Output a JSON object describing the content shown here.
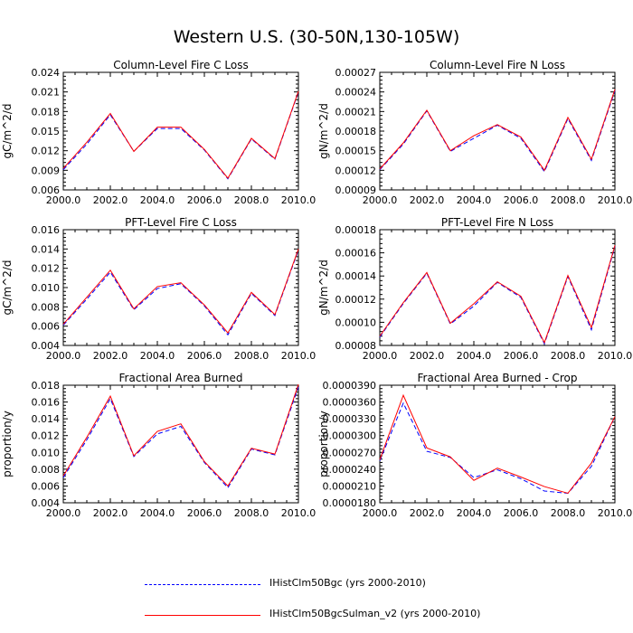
{
  "figure": {
    "title": "Western U.S. (30-50N,130-105W)"
  },
  "legend": {
    "items": [
      {
        "label": "IHistClm50Bgc (yrs 2000-2010)",
        "color": "#0000ff",
        "style": "dashed"
      },
      {
        "label": "IHistClm50BgcSulman_v2 (yrs 2000-2010)",
        "color": "#ff0000",
        "style": "solid"
      }
    ]
  },
  "chart_data": [
    {
      "type": "line",
      "title": "Column-Level Fire C Loss",
      "ylabel": "gC/m^2/d",
      "xlim": [
        2000,
        2010
      ],
      "ylim": [
        0.006,
        0.024
      ],
      "xticks": [
        "2000.0",
        "2002.0",
        "2004.0",
        "2006.0",
        "2008.0",
        "2010.0"
      ],
      "yticks": [
        "0.006",
        "0.009",
        "0.012",
        "0.015",
        "0.018",
        "0.021",
        "0.024"
      ],
      "x": [
        2000,
        2001,
        2002,
        2003,
        2004,
        2005,
        2006,
        2007,
        2008,
        2009,
        2010
      ],
      "series": [
        {
          "name": "IHistClm50Bgc (yrs 2000-2010)",
          "color": "#0000ff",
          "dash": true,
          "values": [
            0.0091,
            0.013,
            0.0175,
            0.0119,
            0.0154,
            0.0154,
            0.0121,
            0.0077,
            0.0138,
            0.0107,
            0.021
          ]
        },
        {
          "name": "IHistClm50BgcSulman_v2 (yrs 2000-2010)",
          "color": "#ff0000",
          "dash": false,
          "values": [
            0.0093,
            0.0133,
            0.0177,
            0.0119,
            0.0156,
            0.0156,
            0.0122,
            0.0078,
            0.0139,
            0.0108,
            0.0211
          ]
        }
      ]
    },
    {
      "type": "line",
      "title": "Column-Level Fire N Loss",
      "ylabel": "gN/m^2/d",
      "xlim": [
        2000,
        2010
      ],
      "ylim": [
        9e-05,
        0.00027
      ],
      "xticks": [
        "2000.0",
        "2002.0",
        "2004.0",
        "2006.0",
        "2008.0",
        "2010.0"
      ],
      "yticks": [
        "0.00009",
        "0.00012",
        "0.00015",
        "0.00018",
        "0.00021",
        "0.00024",
        "0.00027"
      ],
      "x": [
        2000,
        2001,
        2002,
        2003,
        2004,
        2005,
        2006,
        2007,
        2008,
        2009,
        2010
      ],
      "series": [
        {
          "name": "IHistClm50Bgc (yrs 2000-2010)",
          "color": "#0000ff",
          "dash": true,
          "values": [
            0.000121,
            0.00016,
            0.000211,
            0.000149,
            0.000169,
            0.000189,
            0.000169,
            0.000118,
            0.000199,
            0.000135,
            0.000242
          ]
        },
        {
          "name": "IHistClm50BgcSulman_v2 (yrs 2000-2010)",
          "color": "#ff0000",
          "dash": false,
          "values": [
            0.000122,
            0.000162,
            0.000212,
            0.00015,
            0.000173,
            0.00019,
            0.000171,
            0.00012,
            0.000201,
            0.000137,
            0.000244
          ]
        }
      ]
    },
    {
      "type": "line",
      "title": "PFT-Level Fire C Loss",
      "ylabel": "gC/m^2/d",
      "xlim": [
        2000,
        2010
      ],
      "ylim": [
        0.004,
        0.016
      ],
      "xticks": [
        "2000.0",
        "2002.0",
        "2004.0",
        "2006.0",
        "2008.0",
        "2010.0"
      ],
      "yticks": [
        "0.004",
        "0.006",
        "0.008",
        "0.010",
        "0.012",
        "0.014",
        "0.016"
      ],
      "x": [
        2000,
        2001,
        2002,
        2003,
        2004,
        2005,
        2006,
        2007,
        2008,
        2009,
        2010
      ],
      "series": [
        {
          "name": "IHistClm50Bgc (yrs 2000-2010)",
          "color": "#0000ff",
          "dash": true,
          "values": [
            0.0061,
            0.0088,
            0.0116,
            0.0077,
            0.0099,
            0.0104,
            0.0081,
            0.0051,
            0.0094,
            0.0071,
            0.0139
          ]
        },
        {
          "name": "IHistClm50BgcSulman_v2 (yrs 2000-2010)",
          "color": "#ff0000",
          "dash": false,
          "values": [
            0.0062,
            0.009,
            0.0118,
            0.0078,
            0.0101,
            0.0105,
            0.0082,
            0.0053,
            0.0095,
            0.0072,
            0.014
          ]
        }
      ]
    },
    {
      "type": "line",
      "title": "PFT-Level Fire N Loss",
      "ylabel": "gN/m^2/d",
      "xlim": [
        2000,
        2010
      ],
      "ylim": [
        8e-05,
        0.00018
      ],
      "xticks": [
        "2000.0",
        "2002.0",
        "2004.0",
        "2006.0",
        "2008.0",
        "2010.0"
      ],
      "yticks": [
        "0.00008",
        "0.00010",
        "0.00012",
        "0.00014",
        "0.00016",
        "0.00018"
      ],
      "x": [
        2000,
        2001,
        2002,
        2003,
        2004,
        2005,
        2006,
        2007,
        2008,
        2009,
        2010
      ],
      "series": [
        {
          "name": "IHistClm50Bgc (yrs 2000-2010)",
          "color": "#0000ff",
          "dash": true,
          "values": [
            8.72e-05,
            0.0001162,
            0.0001423,
            9.85e-05,
            0.000114,
            0.0001345,
            0.0001215,
            8.15e-05,
            0.0001395,
            9.35e-05,
            0.0001655
          ]
        },
        {
          "name": "IHistClm50BgcSulman_v2 (yrs 2000-2010)",
          "color": "#ff0000",
          "dash": false,
          "values": [
            8.8e-05,
            0.000117,
            0.000143,
            9.92e-05,
            0.000116,
            0.000135,
            0.0001225,
            8.25e-05,
            0.0001405,
            9.55e-05,
            0.0001665
          ]
        }
      ]
    },
    {
      "type": "line",
      "title": "Fractional Area Burned",
      "ylabel": "proportion/y",
      "xlim": [
        2000,
        2010
      ],
      "ylim": [
        0.004,
        0.018
      ],
      "xticks": [
        "2000.0",
        "2002.0",
        "2004.0",
        "2006.0",
        "2008.0",
        "2010.0"
      ],
      "yticks": [
        "0.004",
        "0.006",
        "0.008",
        "0.010",
        "0.012",
        "0.014",
        "0.016",
        "0.018"
      ],
      "x": [
        2000,
        2001,
        2002,
        2003,
        2004,
        2005,
        2006,
        2007,
        2008,
        2009,
        2010
      ],
      "series": [
        {
          "name": "IHistClm50Bgc (yrs 2000-2010)",
          "color": "#0000ff",
          "dash": true,
          "values": [
            0.007,
            0.0115,
            0.0164,
            0.0095,
            0.0122,
            0.0131,
            0.0088,
            0.0058,
            0.0104,
            0.0097,
            0.0178
          ]
        },
        {
          "name": "IHistClm50BgcSulman_v2 (yrs 2000-2010)",
          "color": "#ff0000",
          "dash": false,
          "values": [
            0.0072,
            0.0118,
            0.0167,
            0.0096,
            0.0125,
            0.0134,
            0.0089,
            0.006,
            0.0105,
            0.0098,
            0.0181
          ]
        }
      ]
    },
    {
      "type": "line",
      "title": "Fractional Area Burned - Crop",
      "ylabel": "proportion/y",
      "xlim": [
        2000,
        2010
      ],
      "ylim": [
        1.8e-05,
        3.9e-05
      ],
      "xticks": [
        "2000.0",
        "2002.0",
        "2004.0",
        "2006.0",
        "2008.0",
        "2010.0"
      ],
      "yticks": [
        "0.0000180",
        "0.0000210",
        "0.0000240",
        "0.0000270",
        "0.0000300",
        "0.0000330",
        "0.0000360",
        "0.0000390"
      ],
      "x": [
        2000,
        2001,
        2002,
        2003,
        2004,
        2005,
        2006,
        2007,
        2008,
        2009,
        2010
      ],
      "series": [
        {
          "name": "IHistClm50Bgc (yrs 2000-2010)",
          "color": "#0000ff",
          "dash": true,
          "values": [
            2.55e-05,
            3.58e-05,
            2.72e-05,
            2.61e-05,
            2.25e-05,
            2.39e-05,
            2.23e-05,
            2.01e-05,
            1.97e-05,
            2.45e-05,
            3.34e-05
          ]
        },
        {
          "name": "IHistClm50BgcSulman_v2 (yrs 2000-2010)",
          "color": "#ff0000",
          "dash": false,
          "values": [
            2.57e-05,
            3.72e-05,
            2.78e-05,
            2.62e-05,
            2.2e-05,
            2.42e-05,
            2.26e-05,
            2.09e-05,
            1.97e-05,
            2.51e-05,
            3.34e-05
          ]
        }
      ]
    }
  ]
}
